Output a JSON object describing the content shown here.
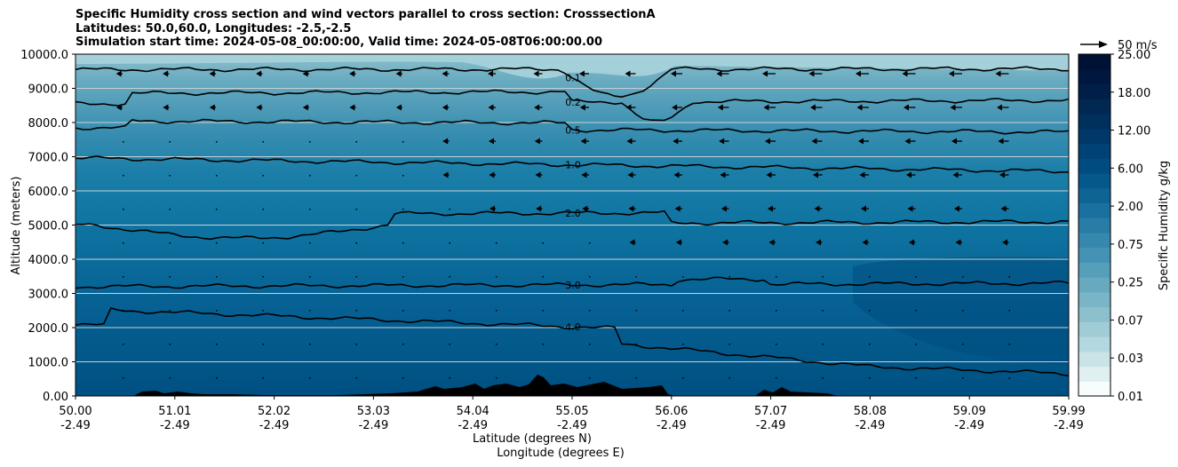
{
  "title_lines": [
    "Specific Humidity cross section and wind vectors parallel to cross section: CrosssectionA",
    "Latitudes: 50.0,60.0, Longitudes: -2.5,-2.5",
    "Simulation start time: 2024-05-08_00:00:00, Valid time: 2024-05-08T06:00:00.00"
  ],
  "chart_data": {
    "type": "contour",
    "title": "Specific Humidity cross section and wind vectors parallel to cross section: CrosssectionA",
    "ylabel": "Altitude (meters)",
    "xlabel_lines": [
      "Latitude (degrees N)",
      "Longitude (degrees E)"
    ],
    "ylim": [
      0,
      10000
    ],
    "y_ticks": [
      "0.00",
      "1000.0",
      "2000.0",
      "3000.0",
      "4000.0",
      "5000.0",
      "6000.0",
      "7000.0",
      "8000.0",
      "9000.0",
      "10000.0"
    ],
    "x_ticks": [
      {
        "lat": "50.00",
        "lon": "-2.49"
      },
      {
        "lat": "51.01",
        "lon": "-2.49"
      },
      {
        "lat": "52.02",
        "lon": "-2.49"
      },
      {
        "lat": "53.03",
        "lon": "-2.49"
      },
      {
        "lat": "54.04",
        "lon": "-2.49"
      },
      {
        "lat": "55.05",
        "lon": "-2.49"
      },
      {
        "lat": "56.06",
        "lon": "-2.49"
      },
      {
        "lat": "57.07",
        "lon": "-2.49"
      },
      {
        "lat": "58.08",
        "lon": "-2.49"
      },
      {
        "lat": "59.09",
        "lon": "-2.49"
      },
      {
        "lat": "59.99",
        "lon": "-2.49"
      }
    ],
    "grid": "horizontal",
    "colorbar": {
      "label": "Specific Humidity g/kg",
      "tick_labels": [
        "0.01",
        "0.03",
        "0.07",
        "0.25",
        "0.75",
        "2.00",
        "6.00",
        "12.00",
        "18.00",
        "25.00"
      ],
      "colors": [
        "#f7fcfd",
        "#e0eff1",
        "#c9e3e7",
        "#b4d8df",
        "#a0ccd6",
        "#8cc0cd",
        "#79b5c6",
        "#67aac0",
        "#559fba",
        "#4493b4",
        "#3688ae",
        "#287ca6",
        "#1a709e",
        "#0e6495",
        "#05588c",
        "#004c80",
        "#004275",
        "#003869",
        "#00305e",
        "#002853",
        "#001f48",
        "#00173f",
        "#001136"
      ],
      "position": "right"
    },
    "contour_levels": [
      {
        "level": 0.1,
        "label": "0.1",
        "z_left": 9550,
        "z_right": 9570
      },
      {
        "level": 0.2,
        "label": "0.2",
        "z_left": 8550,
        "z_right": 8650
      },
      {
        "level": 0.5,
        "label": "0.5",
        "z_left": 7850,
        "z_right": 7720
      },
      {
        "level": 1.0,
        "label": "1.0",
        "z_left": 6960,
        "z_right": 6570
      },
      {
        "level": 2.0,
        "label": "2.0",
        "z_left": 5000,
        "z_right": 5100
      },
      {
        "level": 3.0,
        "label": "3.0",
        "z_left": 3200,
        "z_right": 3300
      },
      {
        "level": 4.0,
        "label": "4.0",
        "z_left": 2100,
        "z_right": 1050
      }
    ],
    "wind_key": {
      "label": "50 m/s",
      "position": "top-right"
    }
  }
}
